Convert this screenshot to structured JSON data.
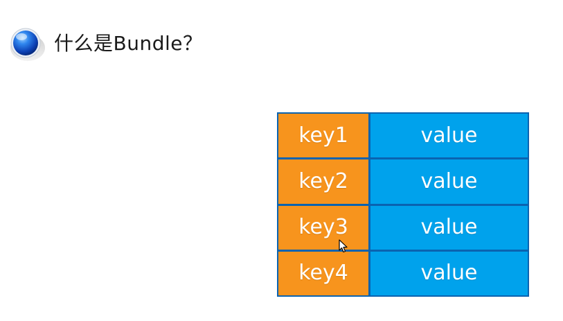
{
  "title": "什么是Bundle？",
  "icons": {
    "bullet": "blue-sphere-bullet-icon",
    "cursor": "mouse-pointer-icon"
  },
  "colors": {
    "key_fill": "#f7941d",
    "value_fill": "#00a2ec",
    "border": "#0a63b0",
    "bullet": "#1e5fd8"
  },
  "table": {
    "rows": [
      {
        "key": "key1",
        "value": "value"
      },
      {
        "key": "key2",
        "value": "value"
      },
      {
        "key": "key3",
        "value": "value"
      },
      {
        "key": "key4",
        "value": "value"
      }
    ]
  }
}
